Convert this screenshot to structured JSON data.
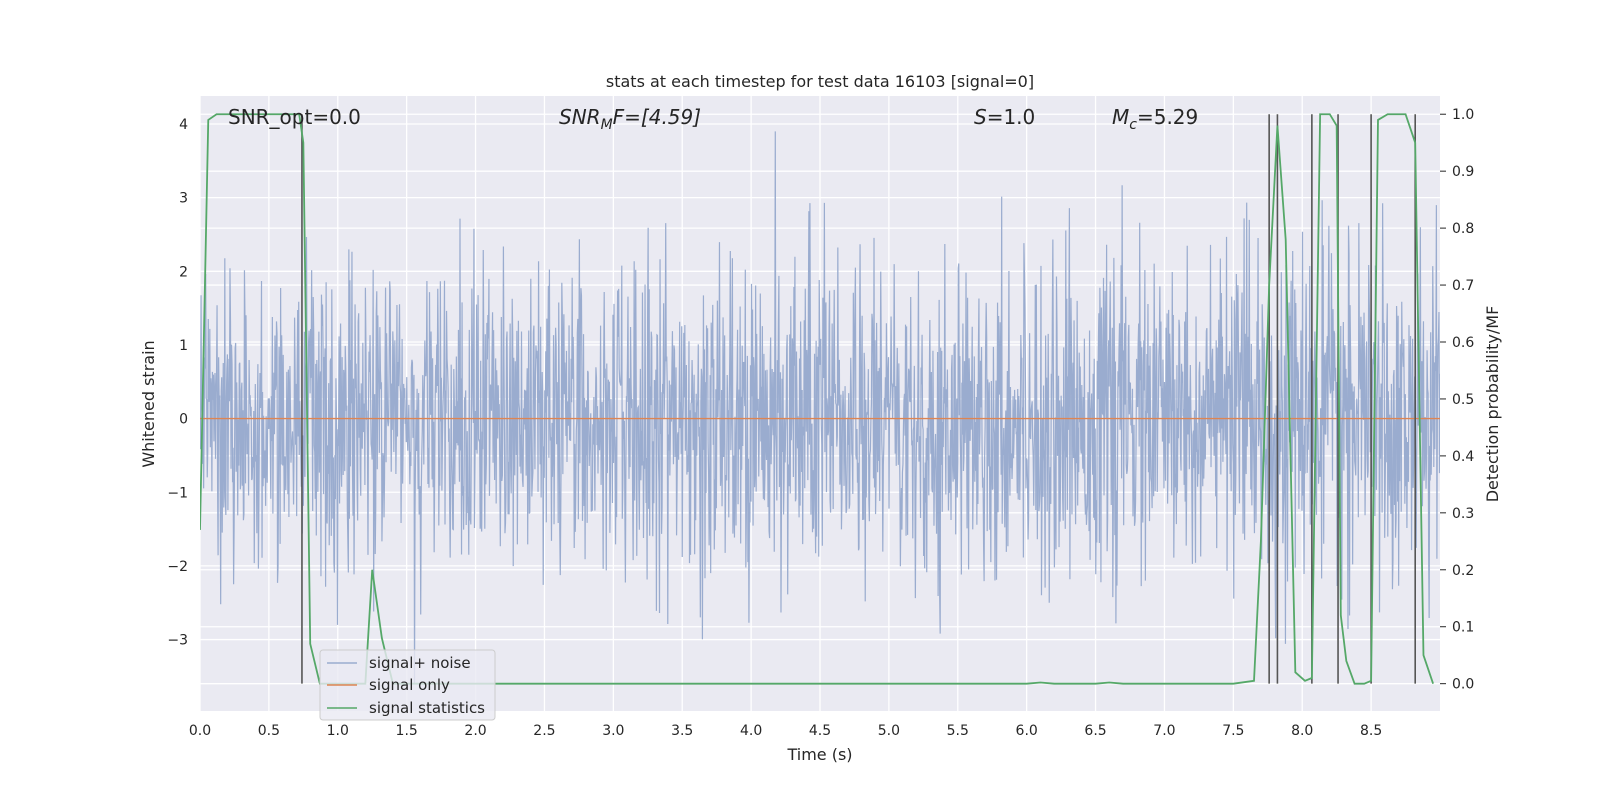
{
  "chart_data": {
    "type": "line",
    "title": "stats at each timestep for test data 16103 [signal=0]",
    "xlabel": "Time (s)",
    "ylabel": "Whitened strain",
    "y2label": "Detection probability/MF",
    "xlim": [
      0.0,
      9.0
    ],
    "ylim": [
      -3.97,
      4.38
    ],
    "y2lim": [
      -0.048,
      1.032
    ],
    "xticks": [
      0.0,
      0.5,
      1.0,
      1.5,
      2.0,
      2.5,
      3.0,
      3.5,
      4.0,
      4.5,
      5.0,
      5.5,
      6.0,
      6.5,
      7.0,
      7.5,
      8.0,
      8.5
    ],
    "xtick_labels": [
      "0.0",
      "0.5",
      "1.0",
      "1.5",
      "2.0",
      "2.5",
      "3.0",
      "3.5",
      "4.0",
      "4.5",
      "5.0",
      "5.5",
      "6.0",
      "6.5",
      "7.0",
      "7.5",
      "8.0",
      "8.5"
    ],
    "yticks": [
      -3,
      -2,
      -1,
      0,
      1,
      2,
      3,
      4
    ],
    "ytick_labels": [
      "−3",
      "−2",
      "−1",
      "0",
      "1",
      "2",
      "3",
      "4"
    ],
    "y2ticks": [
      0.0,
      0.1,
      0.2,
      0.3,
      0.4,
      0.5,
      0.6,
      0.7,
      0.8,
      0.9,
      1.0
    ],
    "y2tick_labels": [
      "0.0",
      "0.1",
      "0.2",
      "0.3",
      "0.4",
      "0.5",
      "0.6",
      "0.7",
      "0.8",
      "0.9",
      "1.0"
    ],
    "grid": true,
    "legend_position": "lower-left",
    "annotations": {
      "snr_opt": "SNR_opt=0.0",
      "snr_mf_base": "SNR",
      "snr_mf_sub": "M",
      "snr_mf_rest": "F=[4.59]",
      "s_var": "S",
      "s_rest": "=1.0",
      "mc_var": "M",
      "mc_sub": "c",
      "mc_rest": "=5.29"
    },
    "series": [
      {
        "name": "signal+ noise",
        "color": "#9aaccf",
        "description_values": "dense whitened noise, roughly Gaussian with std ~1, peaks between -3.5 and 3.9",
        "x_range": [
          0.0,
          9.0
        ],
        "n_points": 2400
      },
      {
        "name": "signal only",
        "color": "#dd8452",
        "x": [
          0.0,
          9.0
        ],
        "y": [
          0.0,
          0.0
        ]
      },
      {
        "name": "signal statistics",
        "color": "#55a868",
        "axis": "right",
        "x": [
          0.0,
          0.06,
          0.12,
          0.5,
          0.72,
          0.75,
          0.8,
          0.87,
          1.0,
          1.2,
          1.25,
          1.32,
          1.4,
          2.0,
          3.0,
          4.0,
          5.0,
          5.5,
          6.0,
          6.1,
          6.2,
          6.5,
          6.6,
          6.7,
          7.0,
          7.5,
          7.65,
          7.7,
          7.76,
          7.82,
          7.88,
          7.95,
          8.02,
          8.07,
          8.13,
          8.2,
          8.25,
          8.28,
          8.32,
          8.38,
          8.45,
          8.5,
          8.55,
          8.62,
          8.75,
          8.82,
          8.88,
          8.95
        ],
        "y": [
          0.27,
          0.99,
          1.0,
          1.0,
          1.0,
          0.95,
          0.07,
          0.0,
          0.0,
          0.0,
          0.2,
          0.08,
          0.0,
          0.0,
          0.0,
          0.0,
          0.0,
          0.0,
          0.0,
          0.002,
          0.0,
          0.0,
          0.002,
          0.0,
          0.0,
          0.0,
          0.005,
          0.25,
          0.7,
          0.98,
          0.78,
          0.02,
          0.005,
          0.01,
          1.0,
          1.0,
          0.98,
          0.12,
          0.04,
          0.0,
          0.0,
          0.005,
          0.99,
          1.0,
          1.0,
          0.95,
          0.05,
          0.0
        ]
      }
    ],
    "vertical_markers": {
      "color": "#555555",
      "x": [
        0.74,
        7.76,
        7.82,
        8.07,
        8.26,
        8.5,
        8.82
      ]
    }
  }
}
